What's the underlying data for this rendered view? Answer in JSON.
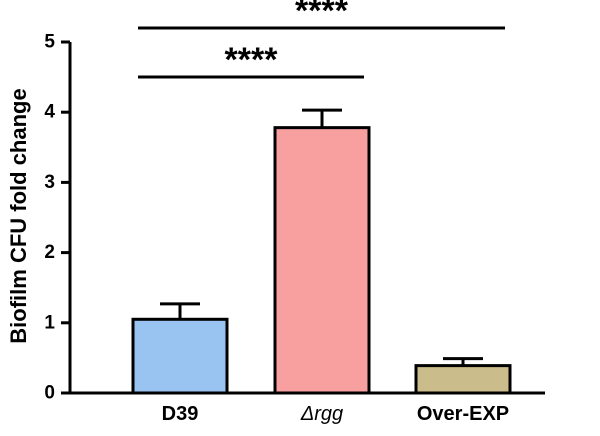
{
  "chart_data": {
    "type": "bar",
    "title": "",
    "xlabel": "",
    "ylabel": "Biofilm CFU fold change",
    "ylim": [
      0,
      5
    ],
    "yticks": [
      0,
      1,
      2,
      3,
      4,
      5
    ],
    "grid": false,
    "categories": [
      {
        "label": "D39",
        "italic_part": "",
        "prefix": ""
      },
      {
        "label": "Δrgg",
        "prefix": "Δ",
        "italic_part": "rgg"
      },
      {
        "label": "Over-EXP",
        "italic_part": "",
        "prefix": ""
      }
    ],
    "values": [
      1.05,
      3.78,
      0.39
    ],
    "errors": [
      0.22,
      0.25,
      0.1
    ],
    "colors": [
      "#99c4f2",
      "#f8a0a0",
      "#cbbd8b"
    ],
    "significance": [
      {
        "from": 0,
        "to": 1,
        "label": "****",
        "y": 4.45
      },
      {
        "from": 0,
        "to": 2,
        "label": "****",
        "y": 5.16
      }
    ]
  }
}
